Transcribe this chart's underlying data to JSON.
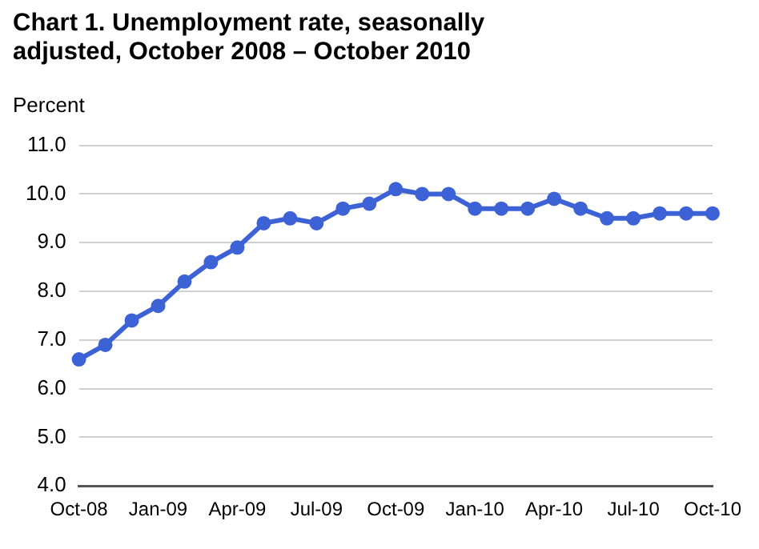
{
  "chart_data": {
    "type": "line",
    "title": "Chart 1. Unemployment rate, seasonally adjusted, October 2008 – October 2010",
    "ylabel": "Percent",
    "categories": [
      "Oct-08",
      null,
      null,
      "Jan-09",
      null,
      null,
      "Apr-09",
      null,
      null,
      "Jul-09",
      null,
      null,
      "Oct-09",
      null,
      null,
      "Jan-10",
      null,
      null,
      "Apr-10",
      null,
      null,
      "Jul-10",
      null,
      null,
      "Oct-10"
    ],
    "series": [
      {
        "color": "#3c62d6",
        "values": [
          6.6,
          6.9,
          7.4,
          7.7,
          8.2,
          8.6,
          8.9,
          9.4,
          9.5,
          9.4,
          9.7,
          9.8,
          10.1,
          10.0,
          10.0,
          9.7,
          9.7,
          9.7,
          9.9,
          9.7,
          9.5,
          9.5,
          9.6,
          9.6,
          9.6
        ]
      }
    ],
    "ylim": [
      4,
      11
    ],
    "yticks": [
      {
        "value": 4,
        "label": "4.0"
      },
      {
        "value": 5,
        "label": "5.0"
      },
      {
        "value": 6,
        "label": "6.0"
      },
      {
        "value": 7,
        "label": "7.0"
      },
      {
        "value": 8,
        "label": "8.0"
      },
      {
        "value": 9,
        "label": "9.0"
      },
      {
        "value": 10,
        "label": "10.0"
      },
      {
        "value": 11,
        "label": "11.0"
      }
    ],
    "grid": "y",
    "marker": "circle",
    "line_style": "solid",
    "legend": false
  }
}
